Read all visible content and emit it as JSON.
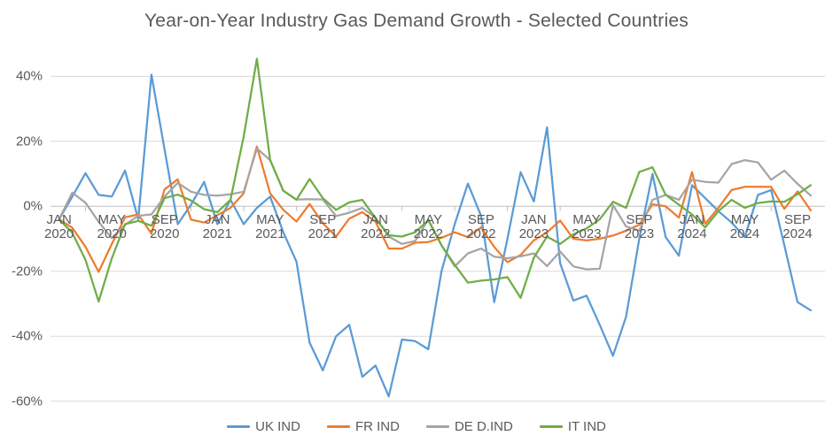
{
  "title": "Year-on-Year Industry Gas Demand Growth - Selected Countries",
  "colors": {
    "background": "#FFFFFF",
    "gridline": "#D9D9D9",
    "axis": "#BFBFBF",
    "text": "#595959"
  },
  "chart_data": {
    "type": "line",
    "title": "Year-on-Year Industry Gas Demand Growth - Selected Countries",
    "xlabel": "",
    "ylabel": "",
    "ylim": [
      -60,
      50
    ],
    "grid": true,
    "legend_position": "bottom",
    "y_ticks": [
      {
        "value": 40,
        "label": "40%"
      },
      {
        "value": 20,
        "label": "20%"
      },
      {
        "value": 0,
        "label": "0%"
      },
      {
        "value": -20,
        "label": "-20%"
      },
      {
        "value": -40,
        "label": "-40%"
      },
      {
        "value": -60,
        "label": "-60%"
      }
    ],
    "x_tick_labels": [
      {
        "month": "JAN",
        "year": "2020",
        "index": 0
      },
      {
        "month": "MAY",
        "year": "2020",
        "index": 4
      },
      {
        "month": "SEP",
        "year": "2020",
        "index": 8
      },
      {
        "month": "JAN",
        "year": "2021",
        "index": 12
      },
      {
        "month": "MAY",
        "year": "2021",
        "index": 16
      },
      {
        "month": "SEP",
        "year": "2021",
        "index": 20
      },
      {
        "month": "JAN",
        "year": "2022",
        "index": 24
      },
      {
        "month": "MAY",
        "year": "2022",
        "index": 28
      },
      {
        "month": "SEP",
        "year": "2022",
        "index": 32
      },
      {
        "month": "JAN",
        "year": "2023",
        "index": 36
      },
      {
        "month": "MAY",
        "year": "2023",
        "index": 40
      },
      {
        "month": "SEP",
        "year": "2023",
        "index": 44
      },
      {
        "month": "JAN",
        "year": "2024",
        "index": 48
      },
      {
        "month": "MAY",
        "year": "2024",
        "index": 52
      },
      {
        "month": "SEP",
        "year": "2024",
        "index": 56
      }
    ],
    "categories": [
      "2020-01",
      "2020-02",
      "2020-03",
      "2020-04",
      "2020-05",
      "2020-06",
      "2020-07",
      "2020-08",
      "2020-09",
      "2020-10",
      "2020-11",
      "2020-12",
      "2021-01",
      "2021-02",
      "2021-03",
      "2021-04",
      "2021-05",
      "2021-06",
      "2021-07",
      "2021-08",
      "2021-09",
      "2021-10",
      "2021-11",
      "2021-12",
      "2022-01",
      "2022-02",
      "2022-03",
      "2022-04",
      "2022-05",
      "2022-06",
      "2022-07",
      "2022-08",
      "2022-09",
      "2022-10",
      "2022-11",
      "2022-12",
      "2023-01",
      "2023-02",
      "2023-03",
      "2023-04",
      "2023-05",
      "2023-06",
      "2023-07",
      "2023-08",
      "2023-09",
      "2023-10",
      "2023-11",
      "2023-12",
      "2024-01",
      "2024-02",
      "2024-03",
      "2024-04",
      "2024-05",
      "2024-06",
      "2024-07",
      "2024-08",
      "2024-09",
      "2024-10"
    ],
    "series": [
      {
        "name": "UK IND",
        "color": "#5B9BD5",
        "values": [
          -4,
          3,
          10.2,
          3.5,
          3,
          11,
          -4,
          40.5,
          17.5,
          -5.5,
          0.5,
          7.5,
          -5.5,
          2,
          -5.5,
          -0.5,
          3,
          -8,
          -17,
          -42,
          -50.5,
          -40,
          -36.5,
          -52.5,
          -49,
          -58.5,
          -41,
          -41.5,
          -44,
          -20,
          -5.5,
          7,
          -3,
          -29.5,
          -10,
          10.5,
          1.5,
          24.3,
          -17.5,
          -29,
          -27.5,
          -36.5,
          -46,
          -34,
          -10,
          10,
          -9.5,
          -15.2,
          6.5,
          2.5,
          -1.5,
          -5,
          -9.5,
          3.5,
          5,
          -12,
          -29.5,
          -32
        ]
      },
      {
        "name": "FR IND",
        "color": "#ED7D31",
        "values": [
          -4,
          -6.6,
          -12.5,
          -20.2,
          -11.6,
          -3.4,
          -2.5,
          -8.4,
          5.2,
          8.3,
          -4.1,
          -5,
          -2.7,
          -0.5,
          4,
          18.4,
          4,
          -1.1,
          -4.7,
          0.7,
          -5.2,
          -9.3,
          -3.8,
          -1.8,
          -4.8,
          -13,
          -13,
          -11.2,
          -11,
          -9.7,
          -8,
          -9.5,
          -6.5,
          -12.5,
          -17.2,
          -15,
          -10.5,
          -8,
          -4.4,
          -10,
          -10.5,
          -10,
          -9,
          -7.5,
          -5.7,
          0.6,
          0,
          -3.5,
          10.5,
          -5.4,
          -0.5,
          5,
          6,
          6,
          6,
          -0.8,
          4.6,
          -1.3
        ]
      },
      {
        "name": "DE D.IND",
        "color": "#A5A5A5",
        "values": [
          -4,
          4.2,
          1.1,
          -4.8,
          -9.8,
          -5.7,
          -2.9,
          -2.5,
          3,
          7.2,
          4.5,
          3.5,
          3.3,
          3.7,
          4.5,
          17.8,
          14.2,
          4.8,
          2.1,
          2.2,
          2.1,
          -3,
          -2,
          -0.5,
          -3.5,
          -9.3,
          -11.6,
          -10.7,
          -4,
          -12,
          -18.5,
          -14.5,
          -13,
          -15.5,
          -16,
          -15.4,
          -14.5,
          -18.4,
          -13.9,
          -18.5,
          -19.4,
          -19.2,
          0.4,
          -6.2,
          -7.5,
          2,
          3.5,
          2,
          8.2,
          7.5,
          7.3,
          13,
          14.2,
          13.5,
          8.2,
          11,
          6.9,
          3.3
        ]
      },
      {
        "name": "IT IND",
        "color": "#70AD47",
        "values": [
          -4,
          -8.2,
          -16.5,
          -29.3,
          -16,
          -5.5,
          -4.5,
          -6,
          2.5,
          3.6,
          1.8,
          -0.9,
          -1.8,
          2,
          21.5,
          45.4,
          14.3,
          4.8,
          2,
          8.4,
          2.5,
          -1.1,
          1.2,
          2,
          -3.7,
          -8.9,
          -9.3,
          -8,
          -4.3,
          -12,
          -18,
          -23.5,
          -22.9,
          -22.5,
          -21.8,
          -28.2,
          -15.8,
          -9.3,
          -11.6,
          -8.6,
          -6.8,
          -4,
          1.4,
          -0.5,
          10.6,
          12,
          3.5,
          0.5,
          -2.5,
          -6.5,
          -1.5,
          2,
          -0.5,
          1,
          1.5,
          1.4,
          3.7,
          6.5
        ]
      }
    ]
  },
  "legend": {
    "items": [
      "UK IND",
      "FR IND",
      "DE D.IND",
      "IT IND"
    ]
  }
}
